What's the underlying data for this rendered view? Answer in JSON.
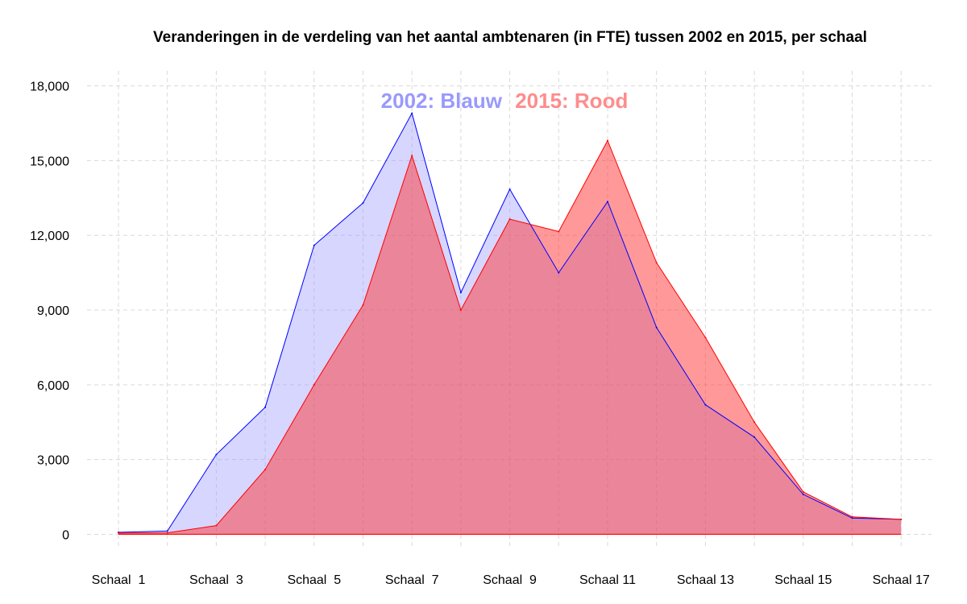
{
  "chart_data": {
    "type": "area",
    "title": "Veranderingen in de verdeling van het aantal ambtenaren (in FTE) tussen 2002 en 2015, per schaal",
    "xlabel": "",
    "ylabel": "",
    "categories": [
      "Schaal 1",
      "Schaal 2",
      "Schaal 3",
      "Schaal 4",
      "Schaal 5",
      "Schaal 6",
      "Schaal 7",
      "Schaal 8",
      "Schaal 9",
      "Schaal 10",
      "Schaal 11",
      "Schaal 12",
      "Schaal 13",
      "Schaal 14",
      "Schaal 15",
      "Schaal 16",
      "Schaal 17"
    ],
    "x_tick_labels": [
      "Schaal  1",
      "",
      "Schaal  3",
      "",
      "Schaal  5",
      "",
      "Schaal  7",
      "",
      "Schaal  9",
      "",
      "Schaal 11",
      "",
      "Schaal 13",
      "",
      "Schaal 15",
      "",
      "Schaal 17"
    ],
    "y_ticks": [
      0,
      3000,
      6000,
      9000,
      12000,
      15000,
      18000
    ],
    "y_tick_labels": [
      "0",
      "3,000",
      "6,000",
      "9,000",
      "12,000",
      "15,000",
      "18,000"
    ],
    "ylim": [
      -600,
      18600
    ],
    "grid": true,
    "legend": "top-center",
    "series": [
      {
        "name": "2002: Blauw",
        "color": "#0000ff",
        "fill": "#9999ff",
        "values": [
          80,
          130,
          3200,
          5100,
          11600,
          13300,
          16900,
          9700,
          13850,
          10500,
          13350,
          8300,
          5200,
          3900,
          1600,
          650,
          600
        ]
      },
      {
        "name": "2015: Rood",
        "color": "#ff0000",
        "fill": "#ff3333",
        "values": [
          50,
          60,
          350,
          2600,
          6000,
          9200,
          15200,
          9000,
          12650,
          12150,
          15800,
          10900,
          7900,
          4500,
          1700,
          700,
          600
        ]
      }
    ]
  }
}
